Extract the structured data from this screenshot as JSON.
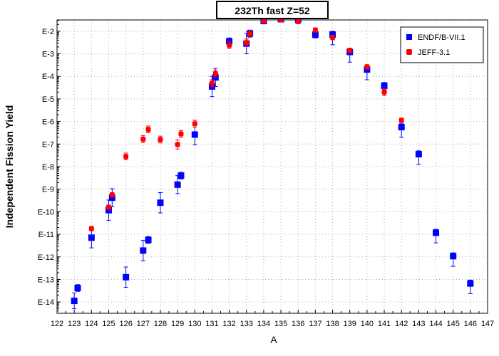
{
  "chart_data": {
    "type": "scatter",
    "title": "232Th fast Z=52",
    "xlabel": "A",
    "ylabel": "Independent Fission Yield",
    "xlim": [
      122,
      147
    ],
    "ylim_exponent": [
      -14.5,
      -1.5
    ],
    "y_scale": "log",
    "grid": true,
    "legend_position": "top-right",
    "x_ticks": [
      "122",
      "123",
      "124",
      "125",
      "126",
      "127",
      "128",
      "129",
      "130",
      "131",
      "132",
      "133",
      "134",
      "135",
      "136",
      "137",
      "138",
      "139",
      "140",
      "141",
      "142",
      "143",
      "144",
      "145",
      "146",
      "147"
    ],
    "y_ticks": [
      {
        "exp": -2,
        "label": "E-2"
      },
      {
        "exp": -3,
        "label": "E-3"
      },
      {
        "exp": -4,
        "label": "E-4"
      },
      {
        "exp": -5,
        "label": "E-5"
      },
      {
        "exp": -6,
        "label": "E-6"
      },
      {
        "exp": -7,
        "label": "E-7"
      },
      {
        "exp": -8,
        "label": "E-8"
      },
      {
        "exp": -9,
        "label": "E-9"
      },
      {
        "exp": -10,
        "label": "E-10"
      },
      {
        "exp": -11,
        "label": "E-11"
      },
      {
        "exp": -12,
        "label": "E-12"
      },
      {
        "exp": -13,
        "label": "E-13"
      },
      {
        "exp": -14,
        "label": "E-14"
      }
    ],
    "series": [
      {
        "name": "ENDF/B-VII.1",
        "color": "#0000ff",
        "marker": "square",
        "points": [
          {
            "x": 123,
            "y_exp": -13.95,
            "err_lo": 0.35,
            "err_hi": 0.35
          },
          {
            "x": 123.2,
            "y_exp": -13.38,
            "err_lo": 0.15,
            "err_hi": 0.15
          },
          {
            "x": 124,
            "y_exp": -11.15,
            "err_lo": 0.45,
            "err_hi": 0.45
          },
          {
            "x": 125,
            "y_exp": -9.93,
            "err_lo": 0.45,
            "err_hi": 0.45
          },
          {
            "x": 125.2,
            "y_exp": -9.38,
            "err_lo": 0.4,
            "err_hi": 0.4
          },
          {
            "x": 126,
            "y_exp": -12.9,
            "err_lo": 0.45,
            "err_hi": 0.45
          },
          {
            "x": 127,
            "y_exp": -11.72,
            "err_lo": 0.45,
            "err_hi": 0.45
          },
          {
            "x": 127.3,
            "y_exp": -11.25,
            "err_lo": 0.15,
            "err_hi": 0.15
          },
          {
            "x": 128,
            "y_exp": -9.6,
            "err_lo": 0.45,
            "err_hi": 0.45
          },
          {
            "x": 129,
            "y_exp": -8.8,
            "err_lo": 0.4,
            "err_hi": 0.4
          },
          {
            "x": 129.2,
            "y_exp": -8.4,
            "err_lo": 0.15,
            "err_hi": 0.15
          },
          {
            "x": 130,
            "y_exp": -6.58,
            "err_lo": 0.45,
            "err_hi": 0.45
          },
          {
            "x": 131,
            "y_exp": -4.45,
            "err_lo": 0.45,
            "err_hi": 0.45
          },
          {
            "x": 131.2,
            "y_exp": -4.05,
            "err_lo": 0.4,
            "err_hi": 0.4
          },
          {
            "x": 132,
            "y_exp": -2.45,
            "err_lo": 0.15,
            "err_hi": 0.15
          },
          {
            "x": 133,
            "y_exp": -2.55,
            "err_lo": 0.45,
            "err_hi": 0.45
          },
          {
            "x": 133.2,
            "y_exp": -2.1,
            "err_lo": 0.15,
            "err_hi": 0.15
          },
          {
            "x": 134,
            "y_exp": -1.55,
            "err_lo": 0.1,
            "err_hi": 0.1
          },
          {
            "x": 135,
            "y_exp": -1.47,
            "err_lo": 0.05,
            "err_hi": 0.05
          },
          {
            "x": 136,
            "y_exp": -1.5,
            "err_lo": 0.05,
            "err_hi": 0.05
          },
          {
            "x": 137,
            "y_exp": -2.15,
            "err_lo": 0.15,
            "err_hi": 0.15
          },
          {
            "x": 138,
            "y_exp": -2.15,
            "err_lo": 0.45,
            "err_hi": 0.15
          },
          {
            "x": 139,
            "y_exp": -2.92,
            "err_lo": 0.45,
            "err_hi": 0.15
          },
          {
            "x": 140,
            "y_exp": -3.7,
            "err_lo": 0.45,
            "err_hi": 0.15
          },
          {
            "x": 141,
            "y_exp": -4.42,
            "err_lo": 0.15,
            "err_hi": 0.15
          },
          {
            "x": 142,
            "y_exp": -6.25,
            "err_lo": 0.45,
            "err_hi": 0.15
          },
          {
            "x": 143,
            "y_exp": -7.45,
            "err_lo": 0.45,
            "err_hi": 0.15
          },
          {
            "x": 144,
            "y_exp": -10.93,
            "err_lo": 0.45,
            "err_hi": 0.15
          },
          {
            "x": 145,
            "y_exp": -11.97,
            "err_lo": 0.45,
            "err_hi": 0.15
          },
          {
            "x": 146,
            "y_exp": -13.18,
            "err_lo": 0.45,
            "err_hi": 0.15
          }
        ]
      },
      {
        "name": "JEFF-3.1",
        "color": "#ff0000",
        "marker": "square",
        "points": [
          {
            "x": 124,
            "y_exp": -10.75,
            "err_lo": 0.1,
            "err_hi": 0.1
          },
          {
            "x": 125,
            "y_exp": -9.8,
            "err_lo": 0.1,
            "err_hi": 0.1
          },
          {
            "x": 125.2,
            "y_exp": -9.25,
            "err_lo": 0.1,
            "err_hi": 0.1
          },
          {
            "x": 126,
            "y_exp": -7.55,
            "err_lo": 0.15,
            "err_hi": 0.15
          },
          {
            "x": 127,
            "y_exp": -6.78,
            "err_lo": 0.15,
            "err_hi": 0.15
          },
          {
            "x": 127.3,
            "y_exp": -6.35,
            "err_lo": 0.15,
            "err_hi": 0.15
          },
          {
            "x": 128,
            "y_exp": -6.8,
            "err_lo": 0.15,
            "err_hi": 0.15
          },
          {
            "x": 129,
            "y_exp": -7.02,
            "err_lo": 0.2,
            "err_hi": 0.2
          },
          {
            "x": 129.2,
            "y_exp": -6.55,
            "err_lo": 0.15,
            "err_hi": 0.15
          },
          {
            "x": 130,
            "y_exp": -6.1,
            "err_lo": 0.15,
            "err_hi": 0.15
          },
          {
            "x": 131,
            "y_exp": -4.3,
            "err_lo": 0.15,
            "err_hi": 0.15
          },
          {
            "x": 131.2,
            "y_exp": -3.88,
            "err_lo": 0.15,
            "err_hi": 0.15
          },
          {
            "x": 132,
            "y_exp": -2.62,
            "err_lo": 0.15,
            "err_hi": 0.15
          },
          {
            "x": 133,
            "y_exp": -2.5,
            "err_lo": 0.15,
            "err_hi": 0.15
          },
          {
            "x": 133.2,
            "y_exp": -2.12,
            "err_lo": 0.15,
            "err_hi": 0.15
          },
          {
            "x": 134,
            "y_exp": -1.55,
            "err_lo": 0.05,
            "err_hi": 0.05
          },
          {
            "x": 135,
            "y_exp": -1.5,
            "err_lo": 0.05,
            "err_hi": 0.05
          },
          {
            "x": 136,
            "y_exp": -1.58,
            "err_lo": 0.05,
            "err_hi": 0.05
          },
          {
            "x": 137,
            "y_exp": -1.95,
            "err_lo": 0.1,
            "err_hi": 0.1
          },
          {
            "x": 138,
            "y_exp": -2.28,
            "err_lo": 0.1,
            "err_hi": 0.1
          },
          {
            "x": 139,
            "y_exp": -2.85,
            "err_lo": 0.1,
            "err_hi": 0.1
          },
          {
            "x": 140,
            "y_exp": -3.58,
            "err_lo": 0.1,
            "err_hi": 0.1
          },
          {
            "x": 141,
            "y_exp": -4.7,
            "err_lo": 0.15,
            "err_hi": 0.15
          },
          {
            "x": 142,
            "y_exp": -5.95,
            "err_lo": 0.1,
            "err_hi": 0.1
          }
        ]
      }
    ]
  }
}
